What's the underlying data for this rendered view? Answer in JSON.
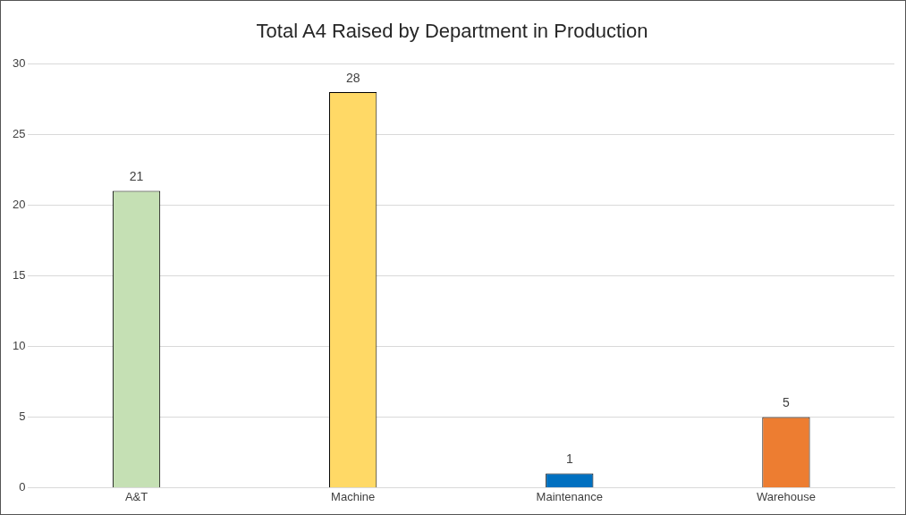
{
  "chart_data": {
    "type": "bar",
    "title": "Total A4 Raised by Department in Production",
    "categories": [
      "A&T",
      "Machine",
      "Maintenance",
      "Warehouse"
    ],
    "values": [
      21,
      28,
      1,
      5
    ],
    "colors": [
      "#c5e0b4",
      "#ffd966",
      "#0070c0",
      "#ed7d31"
    ],
    "ylim": [
      0,
      30
    ],
    "yticks": [
      0,
      5,
      10,
      15,
      20,
      25,
      30
    ],
    "grid": "y",
    "data_labels": true,
    "legend": false
  }
}
